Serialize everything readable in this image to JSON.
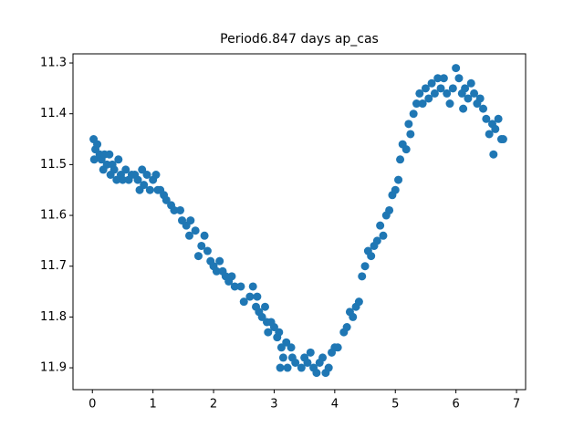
{
  "chart_data": {
    "type": "scatter",
    "title": "Period6.847 days ap_cas",
    "color": "#1f77b4",
    "xlim": [
      -0.32,
      7.15
    ],
    "ylim": [
      11.943,
      11.282
    ],
    "xticks": [
      0,
      1,
      2,
      3,
      4,
      5,
      6,
      7
    ],
    "yticks": [
      11.3,
      11.4,
      11.5,
      11.6,
      11.7,
      11.8,
      11.9
    ],
    "x": [
      0.02,
      0.03,
      0.05,
      0.08,
      0.12,
      0.15,
      0.18,
      0.2,
      0.24,
      0.28,
      0.3,
      0.33,
      0.36,
      0.4,
      0.43,
      0.47,
      0.5,
      0.55,
      0.6,
      0.65,
      0.7,
      0.75,
      0.78,
      0.82,
      0.85,
      0.9,
      0.95,
      1.0,
      1.05,
      1.08,
      1.12,
      1.18,
      1.22,
      1.3,
      1.35,
      1.45,
      1.48,
      1.55,
      1.6,
      1.62,
      1.7,
      1.75,
      1.8,
      1.85,
      1.9,
      1.95,
      2.0,
      2.05,
      2.1,
      2.15,
      2.2,
      2.25,
      2.3,
      2.35,
      2.45,
      2.5,
      2.6,
      2.65,
      2.7,
      2.72,
      2.75,
      2.8,
      2.85,
      2.88,
      2.9,
      2.95,
      3.0,
      3.05,
      3.08,
      3.1,
      3.12,
      3.15,
      3.2,
      3.22,
      3.28,
      3.3,
      3.35,
      3.45,
      3.5,
      3.55,
      3.6,
      3.65,
      3.7,
      3.75,
      3.8,
      3.85,
      3.9,
      3.95,
      4.0,
      4.05,
      4.15,
      4.2,
      4.25,
      4.3,
      4.35,
      4.4,
      4.45,
      4.5,
      4.55,
      4.6,
      4.65,
      4.7,
      4.75,
      4.8,
      4.85,
      4.9,
      4.95,
      5.0,
      5.05,
      5.08,
      5.12,
      5.18,
      5.22,
      5.25,
      5.3,
      5.35,
      5.4,
      5.45,
      5.5,
      5.55,
      5.6,
      5.65,
      5.7,
      5.75,
      5.8,
      5.85,
      5.9,
      5.95,
      6.0,
      6.05,
      6.1,
      6.12,
      6.15,
      6.2,
      6.25,
      6.3,
      6.35,
      6.4,
      6.45,
      6.5,
      6.55,
      6.6,
      6.62,
      6.65,
      6.7,
      6.75,
      6.78
    ],
    "y": [
      11.45,
      11.49,
      11.47,
      11.46,
      11.48,
      11.49,
      11.51,
      11.48,
      11.5,
      11.48,
      11.52,
      11.5,
      11.51,
      11.53,
      11.49,
      11.52,
      11.53,
      11.51,
      11.53,
      11.52,
      11.52,
      11.53,
      11.55,
      11.51,
      11.54,
      11.52,
      11.55,
      11.53,
      11.52,
      11.55,
      11.55,
      11.56,
      11.57,
      11.58,
      11.59,
      11.59,
      11.61,
      11.62,
      11.64,
      11.61,
      11.63,
      11.68,
      11.66,
      11.64,
      11.67,
      11.69,
      11.7,
      11.71,
      11.69,
      11.71,
      11.72,
      11.73,
      11.72,
      11.74,
      11.74,
      11.77,
      11.76,
      11.74,
      11.78,
      11.76,
      11.79,
      11.8,
      11.78,
      11.81,
      11.83,
      11.81,
      11.82,
      11.84,
      11.83,
      11.9,
      11.86,
      11.88,
      11.85,
      11.9,
      11.86,
      11.88,
      11.89,
      11.9,
      11.88,
      11.89,
      11.87,
      11.9,
      11.91,
      11.89,
      11.88,
      11.91,
      11.9,
      11.87,
      11.86,
      11.86,
      11.83,
      11.82,
      11.79,
      11.8,
      11.78,
      11.77,
      11.72,
      11.7,
      11.67,
      11.68,
      11.66,
      11.65,
      11.62,
      11.64,
      11.6,
      11.59,
      11.56,
      11.55,
      11.53,
      11.49,
      11.46,
      11.47,
      11.42,
      11.44,
      11.4,
      11.38,
      11.36,
      11.38,
      11.35,
      11.37,
      11.34,
      11.36,
      11.33,
      11.35,
      11.33,
      11.36,
      11.38,
      11.35,
      11.31,
      11.33,
      11.36,
      11.39,
      11.35,
      11.37,
      11.34,
      11.36,
      11.38,
      11.37,
      11.39,
      11.41,
      11.44,
      11.42,
      11.48,
      11.43,
      11.41,
      11.45,
      11.45
    ]
  }
}
